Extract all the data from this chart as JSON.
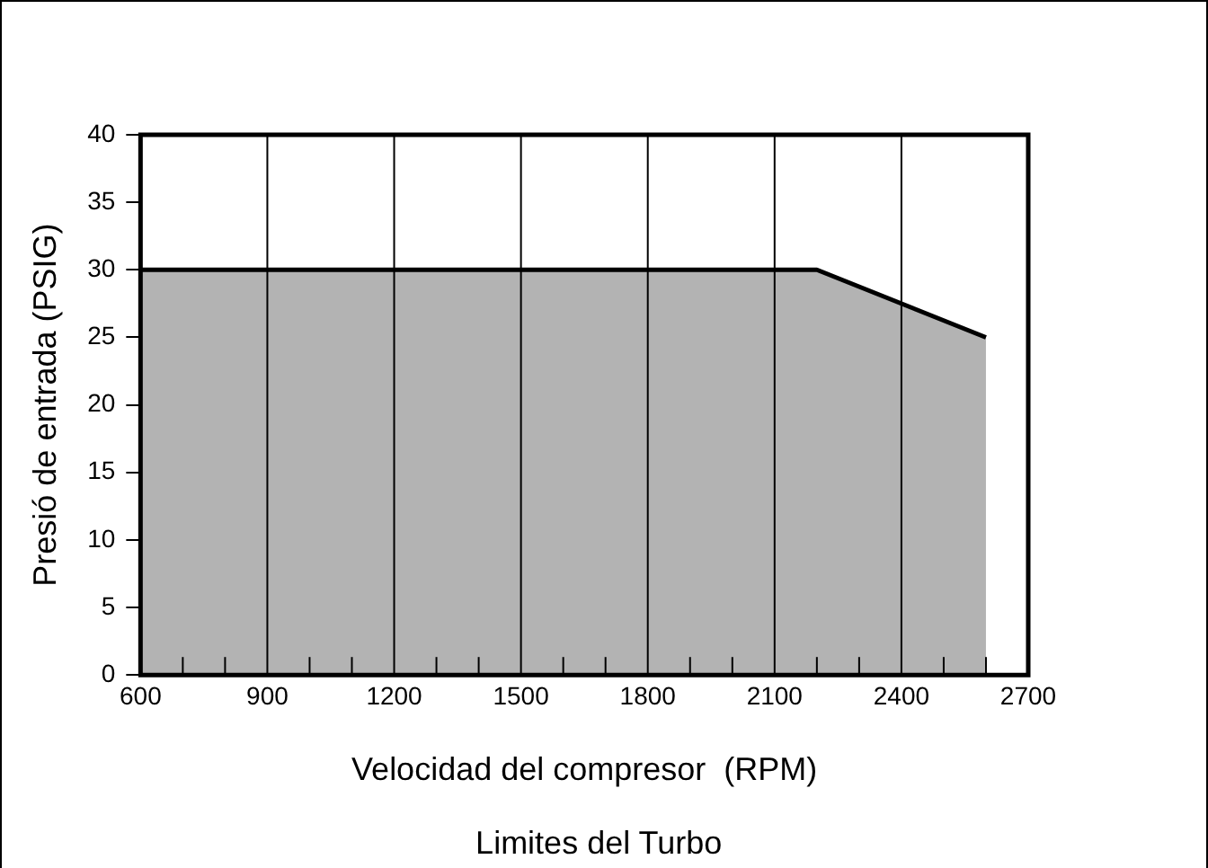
{
  "chart_data": {
    "type": "area",
    "xlabel": "Velocidad del compresor  (RPM)",
    "ylabel": "Presió de entrada (PSIG)",
    "annotations": [
      "Limites del Turbo"
    ],
    "x": [
      600,
      2200,
      2600
    ],
    "values": [
      30,
      30,
      25
    ],
    "color": "#b3b3b3",
    "xlim": [
      600,
      2700
    ],
    "ylim": [
      0,
      40
    ],
    "xticks": [
      600,
      {
        "value": 700,
        "label": null
      },
      {
        "value": 800,
        "label": null
      },
      900,
      {
        "value": 1000,
        "label": null
      },
      {
        "value": 1100,
        "label": null
      },
      1200,
      {
        "value": 1300,
        "label": null
      },
      {
        "value": 1400,
        "label": null
      },
      1500,
      {
        "value": 1600,
        "label": null
      },
      {
        "value": 1700,
        "label": null
      },
      1800,
      {
        "value": 1900,
        "label": null
      },
      {
        "value": 2000,
        "label": null
      },
      2100,
      {
        "value": 2200,
        "label": null
      },
      {
        "value": 2300,
        "label": null
      },
      2400,
      {
        "value": 2500,
        "label": null
      },
      {
        "value": 2600,
        "label": null
      },
      2700
    ],
    "yticks": [
      0,
      5,
      10,
      15,
      20,
      25,
      30,
      35,
      40
    ],
    "grid": "x",
    "legend": false,
    "marker": "none",
    "line_style": "solid"
  }
}
